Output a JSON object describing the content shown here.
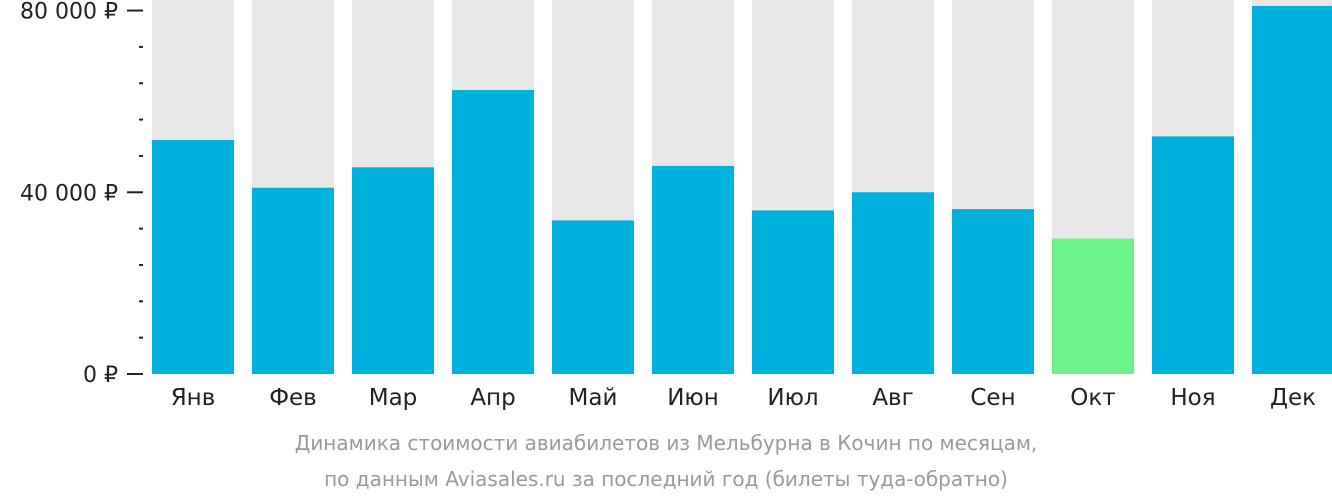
{
  "chart_data": {
    "type": "bar",
    "categories": [
      "Янв",
      "Фев",
      "Мар",
      "Апр",
      "Май",
      "Июн",
      "Июл",
      "Авг",
      "Сен",
      "Окт",
      "Ноя",
      "Дек"
    ],
    "values": [
      51500,
      41000,
      45500,
      62500,
      33800,
      45800,
      36000,
      40000,
      36300,
      29800,
      52300,
      81000
    ],
    "highlight_index": 9,
    "ylim": [
      0,
      81000
    ],
    "yticks": [
      {
        "value": 0,
        "label": "0 ₽"
      },
      {
        "value": 40000,
        "label": "40 000 ₽"
      },
      {
        "value": 80000,
        "label": "80 000 ₽"
      }
    ],
    "minor_tick_step": 8000,
    "title": "Динамика стоимости авиабилетов из Мельбурна в Кочин по месяцам,",
    "subtitle": "по данным Aviasales.ru за последний год (билеты туда-обратно)",
    "colors": {
      "bar": "#00b0dd",
      "highlight": "#6cf28b",
      "background_bar": "#e8e8e8",
      "axis": "#222222",
      "caption": "#9a9a9a"
    }
  }
}
